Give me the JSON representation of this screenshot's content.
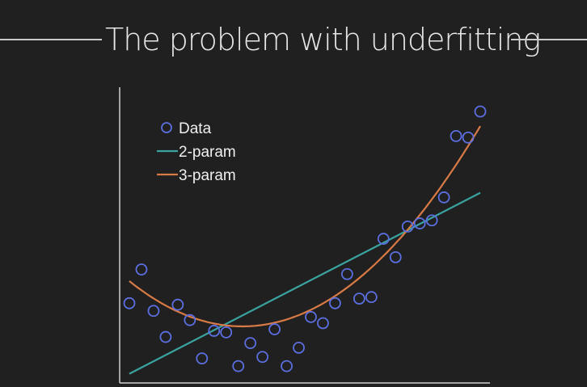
{
  "slide": {
    "title": "The problem with underfitting",
    "colors": {
      "background": "#202020",
      "axis": "#cfcfcf",
      "data": "#5b6fe0",
      "fit2": "#3aa3a0",
      "fit3": "#d87a45",
      "text": "#f0f0f0"
    }
  },
  "chart_data": {
    "type": "scatter",
    "title": "",
    "xlabel": "",
    "ylabel": "",
    "grid": false,
    "axis_ticks": false,
    "legend_position": "top-left",
    "legend": [
      {
        "label": "Data",
        "marker": "circle"
      },
      {
        "label": "2-param",
        "marker": "line"
      },
      {
        "label": "3-param",
        "marker": "line"
      }
    ],
    "xlim": [
      0,
      30
    ],
    "ylim": [
      0,
      20
    ],
    "series": [
      {
        "name": "Data",
        "type": "scatter",
        "x": [
          0.4,
          1.4,
          2.4,
          3.4,
          4.4,
          5.4,
          6.4,
          7.4,
          8.4,
          9.4,
          10.4,
          11.4,
          12.4,
          13.4,
          14.4,
          15.4,
          16.4,
          17.4,
          18.4,
          19.4,
          20.4,
          21.4,
          22.4,
          23.4,
          24.4,
          25.4,
          26.4,
          27.4,
          28.4,
          29.4
        ],
        "y": [
          5.2,
          7.4,
          4.7,
          3.0,
          5.1,
          4.1,
          1.6,
          3.4,
          3.3,
          1.1,
          2.6,
          1.7,
          3.5,
          1.1,
          2.3,
          4.3,
          3.9,
          5.2,
          7.1,
          5.5,
          5.6,
          9.4,
          8.2,
          10.2,
          10.4,
          10.6,
          12.1,
          16.1,
          16.0,
          17.7
        ]
      },
      {
        "name": "2-param",
        "type": "line",
        "x": [
          0.4,
          29.4
        ],
        "y": [
          0.6,
          12.4
        ]
      },
      {
        "name": "3-param",
        "type": "line",
        "curve": "quadratic",
        "coefficients": {
          "a": 0.0338,
          "b": -0.6588,
          "c": 6.9
        }
      }
    ]
  }
}
